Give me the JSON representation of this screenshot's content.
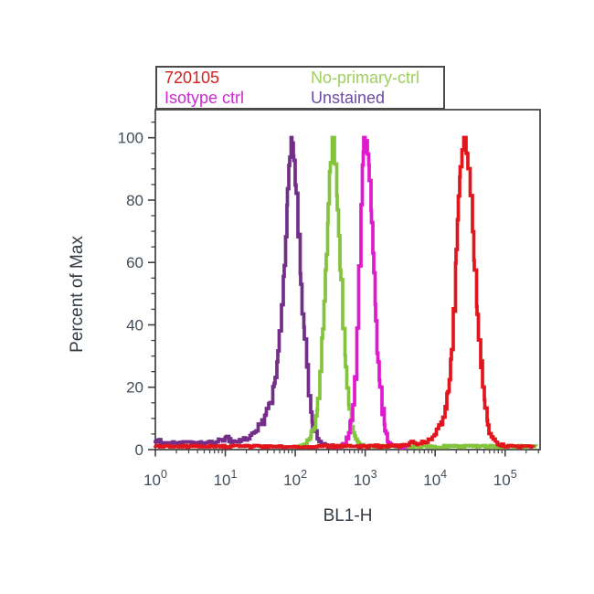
{
  "legend": {
    "entries": [
      {
        "label": "720105",
        "color": "#d6201f"
      },
      {
        "label": "No-primary-ctrl",
        "color": "#9cd05e"
      },
      {
        "label": "Isotype ctrl",
        "color": "#cb2bd1"
      },
      {
        "label": "Unstained",
        "color": "#6b4c9f"
      }
    ]
  },
  "chart_data": {
    "type": "line",
    "subtype": "flow-cytometry-histogram-overlay",
    "title": "",
    "xlabel": "BL1-H",
    "ylabel": "Percent of Max",
    "x_scale": "log10",
    "x_log_range": [
      0,
      5.5
    ],
    "x_tick_base": "10",
    "x_decades": [
      0,
      1,
      2,
      3,
      4,
      5
    ],
    "ylim": [
      0,
      109
    ],
    "y_ticks_major": [
      0,
      20,
      40,
      60,
      80,
      100
    ],
    "y_minor_step": 5,
    "grid": false,
    "legend_position": "top-left-box",
    "axis_color": "#3f3f3f",
    "tick_label_color": "#414c57",
    "series": [
      {
        "name": "Unstained",
        "color": "#722e88",
        "peak_x_approx": 95,
        "peak_pct": 100,
        "points": [
          [
            0.0,
            2.3
          ],
          [
            0.08,
            2.6
          ],
          [
            0.15,
            2.2
          ],
          [
            0.25,
            2.1
          ],
          [
            0.35,
            2.3
          ],
          [
            0.45,
            2.1
          ],
          [
            0.55,
            2.2
          ],
          [
            0.65,
            2.1
          ],
          [
            0.75,
            2.3
          ],
          [
            0.85,
            2.2
          ],
          [
            0.93,
            2.9
          ],
          [
            1.0,
            4.2
          ],
          [
            1.06,
            3.1
          ],
          [
            1.13,
            2.6
          ],
          [
            1.22,
            3.0
          ],
          [
            1.3,
            3.6
          ],
          [
            1.38,
            4.6
          ],
          [
            1.45,
            6.0
          ],
          [
            1.52,
            8.5
          ],
          [
            1.58,
            11
          ],
          [
            1.64,
            15
          ],
          [
            1.7,
            22
          ],
          [
            1.75,
            31
          ],
          [
            1.8,
            45
          ],
          [
            1.84,
            60
          ],
          [
            1.88,
            78
          ],
          [
            1.91,
            91
          ],
          [
            1.94,
            100
          ],
          [
            1.97,
            95
          ],
          [
            2.0,
            85
          ],
          [
            2.04,
            68
          ],
          [
            2.08,
            52
          ],
          [
            2.12,
            38
          ],
          [
            2.16,
            26
          ],
          [
            2.2,
            16
          ],
          [
            2.24,
            9.5
          ],
          [
            2.28,
            5.5
          ],
          [
            2.33,
            3.0
          ],
          [
            2.4,
            1.6
          ],
          [
            2.5,
            1.0
          ],
          [
            2.62,
            0.6
          ]
        ]
      },
      {
        "name": "No-primary-ctrl",
        "color": "#84c33c",
        "peak_x_approx": 340,
        "peak_pct": 100,
        "points": [
          [
            2.02,
            0.7
          ],
          [
            2.1,
            1.2
          ],
          [
            2.16,
            2.2
          ],
          [
            2.22,
            4.5
          ],
          [
            2.27,
            8
          ],
          [
            2.31,
            14
          ],
          [
            2.35,
            24
          ],
          [
            2.39,
            38
          ],
          [
            2.43,
            57
          ],
          [
            2.46,
            73
          ],
          [
            2.49,
            88
          ],
          [
            2.53,
            100
          ],
          [
            2.56,
            93
          ],
          [
            2.6,
            78
          ],
          [
            2.64,
            58
          ],
          [
            2.68,
            40
          ],
          [
            2.72,
            25
          ],
          [
            2.76,
            14
          ],
          [
            2.8,
            7.5
          ],
          [
            2.85,
            3.8
          ],
          [
            2.9,
            2.0
          ],
          [
            2.98,
            1.2
          ],
          [
            3.1,
            1.0
          ],
          [
            3.4,
            1.0
          ],
          [
            3.8,
            1.0
          ],
          [
            4.2,
            1.0
          ],
          [
            4.6,
            1.0
          ],
          [
            5.0,
            1.0
          ],
          [
            5.25,
            1.0
          ],
          [
            5.45,
            0.9
          ]
        ]
      },
      {
        "name": "Isotype ctrl",
        "color": "#df19ce",
        "peak_x_approx": 960,
        "peak_pct": 100,
        "points": [
          [
            2.55,
            0.8
          ],
          [
            2.62,
            1.2
          ],
          [
            2.68,
            2.0
          ],
          [
            2.73,
            3.8
          ],
          [
            2.78,
            7.5
          ],
          [
            2.82,
            14
          ],
          [
            2.85,
            24
          ],
          [
            2.88,
            39
          ],
          [
            2.91,
            58
          ],
          [
            2.94,
            79
          ],
          [
            2.96,
            92
          ],
          [
            2.98,
            100
          ],
          [
            3.0,
            96
          ],
          [
            3.02,
            99
          ],
          [
            3.05,
            90
          ],
          [
            3.08,
            77
          ],
          [
            3.11,
            62
          ],
          [
            3.14,
            46
          ],
          [
            3.17,
            32
          ],
          [
            3.2,
            21
          ],
          [
            3.24,
            12
          ],
          [
            3.28,
            6.5
          ],
          [
            3.32,
            3.2
          ],
          [
            3.38,
            1.6
          ],
          [
            3.48,
            1.0
          ],
          [
            3.6,
            0.7
          ]
        ]
      },
      {
        "name": "720105",
        "color": "#e1161c",
        "peak_x_approx": 26000,
        "peak_pct": 100,
        "points": [
          [
            0.0,
            1.1
          ],
          [
            0.4,
            1.0
          ],
          [
            0.8,
            1.1
          ],
          [
            1.2,
            1.0
          ],
          [
            1.6,
            1.1
          ],
          [
            2.0,
            1.0
          ],
          [
            2.4,
            1.1
          ],
          [
            2.8,
            1.0
          ],
          [
            3.2,
            1.1
          ],
          [
            3.5,
            1.2
          ],
          [
            3.6,
            1.8
          ],
          [
            3.66,
            2.4
          ],
          [
            3.72,
            1.6
          ],
          [
            3.78,
            2.6
          ],
          [
            3.84,
            2.0
          ],
          [
            3.9,
            3.2
          ],
          [
            3.96,
            4.5
          ],
          [
            4.02,
            6.5
          ],
          [
            4.08,
            9.5
          ],
          [
            4.14,
            14
          ],
          [
            4.18,
            19
          ],
          [
            4.22,
            28
          ],
          [
            4.26,
            45
          ],
          [
            4.3,
            65
          ],
          [
            4.33,
            80
          ],
          [
            4.36,
            92
          ],
          [
            4.41,
            100
          ],
          [
            4.45,
            95
          ],
          [
            4.5,
            81
          ],
          [
            4.55,
            62
          ],
          [
            4.6,
            43
          ],
          [
            4.65,
            27
          ],
          [
            4.7,
            15
          ],
          [
            4.75,
            8
          ],
          [
            4.8,
            4
          ],
          [
            4.86,
            2.2
          ],
          [
            4.94,
            1.4
          ],
          [
            5.05,
            1.1
          ],
          [
            5.2,
            1.0
          ],
          [
            5.4,
            1.0
          ]
        ]
      }
    ]
  }
}
